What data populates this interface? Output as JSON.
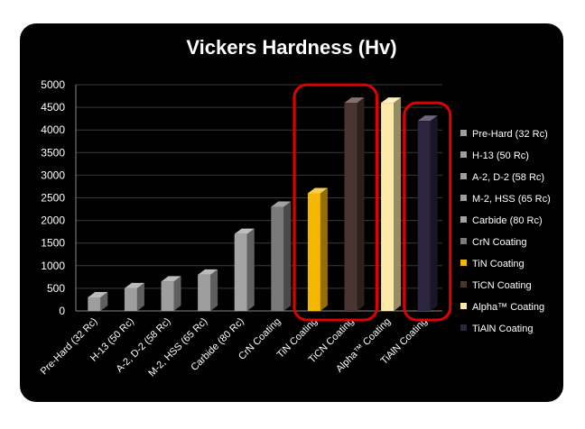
{
  "chart_data": {
    "type": "bar",
    "title": "Vickers Hardness (Hv)",
    "xlabel": "",
    "ylabel": "",
    "ylim": [
      0,
      5000
    ],
    "yticks": [
      0,
      500,
      1000,
      1500,
      2000,
      2500,
      3000,
      3500,
      4000,
      4500,
      5000
    ],
    "grid": true,
    "legend_position": "right",
    "categories": [
      "Pre-Hard (32 Rc)",
      "H-13 (50 Rc)",
      "A-2, D-2 (58 Rc)",
      "M-2, HSS (65 Rc)",
      "Carbide (80 Rc)",
      "CrN Coating",
      "TiN Coating",
      "TiCN Coating",
      "Alpha™ Coating",
      "TiAlN Coating"
    ],
    "values": [
      300,
      500,
      650,
      800,
      1700,
      2300,
      2600,
      4600,
      4600,
      4200
    ],
    "colors": [
      "#9e9e9e",
      "#9e9e9e",
      "#9e9e9e",
      "#9e9e9e",
      "#a4a4a4",
      "#7a7a7a",
      "#f5b800",
      "#4a3530",
      "#fde9a8",
      "#2b2540"
    ],
    "highlighted": [
      "TiN Coating",
      "TiCN Coating",
      "TiAlN Coating"
    ],
    "highlight_color": "#e00000"
  }
}
